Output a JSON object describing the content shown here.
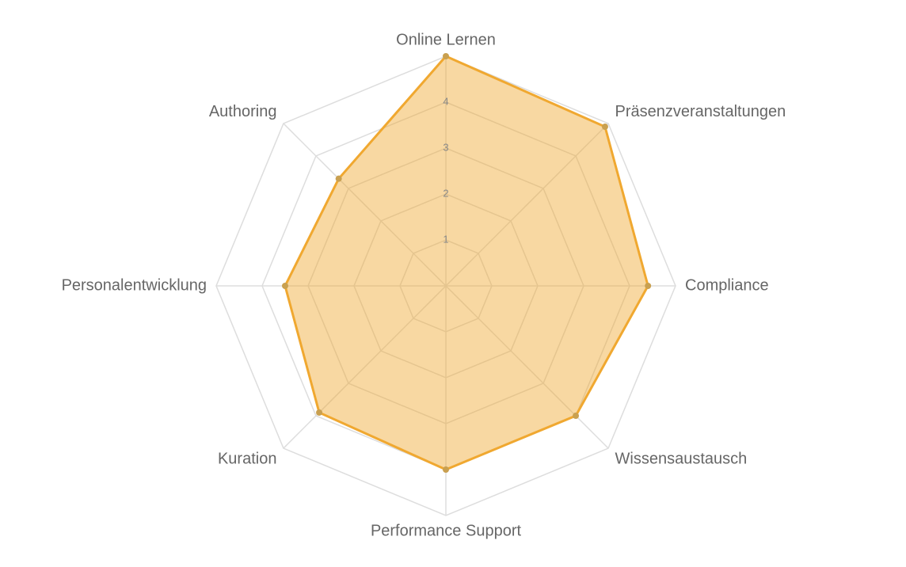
{
  "chart_data": {
    "type": "radar",
    "categories": [
      "Online Lernen",
      "Präsenzveranstaltungen",
      "Compliance",
      "Wissensaustausch",
      "Performance Support",
      "Kuration",
      "Personalentwicklung",
      "Authoring"
    ],
    "values": [
      5,
      4.9,
      4.4,
      4.0,
      4.0,
      3.9,
      3.5,
      3.3
    ],
    "color": "#f0a830",
    "ylim": [
      0,
      5
    ],
    "yticks": [
      1,
      2,
      3,
      4
    ],
    "grid": true
  }
}
